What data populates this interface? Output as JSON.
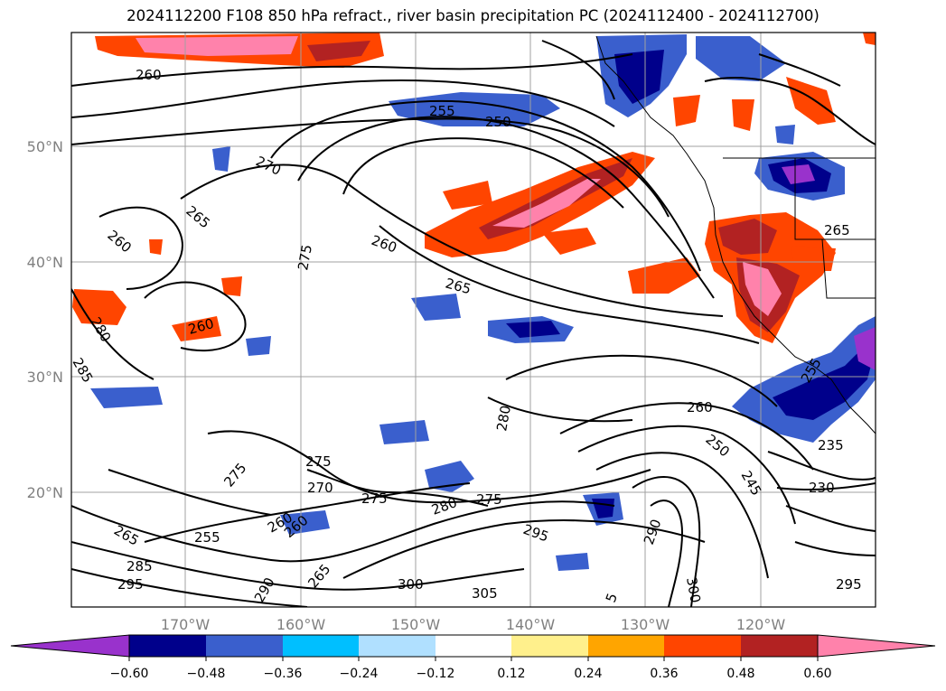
{
  "title": "2024112200 F108 850 hPa refract., river basin precipitation PC (2024112400 - 2024112700)",
  "map": {
    "lat_labels": [
      "50°N",
      "40°N",
      "30°N",
      "20°N"
    ],
    "lon_labels": [
      "170°W",
      "160°W",
      "150°W",
      "140°W",
      "130°W",
      "120°W"
    ],
    "contour_labels": [
      "260",
      "255",
      "250",
      "270",
      "265",
      "260",
      "275",
      "260",
      "265",
      "265",
      "260",
      "280",
      "285",
      "260",
      "275",
      "275",
      "270",
      "275",
      "280",
      "275",
      "280",
      "260",
      "250",
      "245",
      "255",
      "235",
      "230",
      "265",
      "255",
      "285",
      "260",
      "295",
      "290",
      "300",
      "305",
      "295",
      "290",
      "300",
      "295",
      "265",
      "5"
    ],
    "colors": {
      "pos_1": "#fff08c",
      "pos_2": "#ffa500",
      "pos_3": "#ff4500",
      "pos_4": "#b22222",
      "pos_5": "#ff82ab",
      "neg_1": "#b0e0ff",
      "neg_2": "#00bfff",
      "neg_3": "#3a5fcd",
      "neg_4": "#00008b",
      "neg_5": "#9932cc"
    }
  },
  "colorbar": {
    "ticks": [
      "−0.60",
      "−0.48",
      "−0.36",
      "−0.24",
      "−0.12",
      "0.12",
      "0.24",
      "0.36",
      "0.48",
      "0.60"
    ],
    "colors": [
      "#9932cc",
      "#00008b",
      "#3a5fcd",
      "#00bfff",
      "#b0e0ff",
      "#ffffff",
      "#fff08c",
      "#ffa500",
      "#ff4500",
      "#b22222",
      "#ff82ab"
    ]
  }
}
